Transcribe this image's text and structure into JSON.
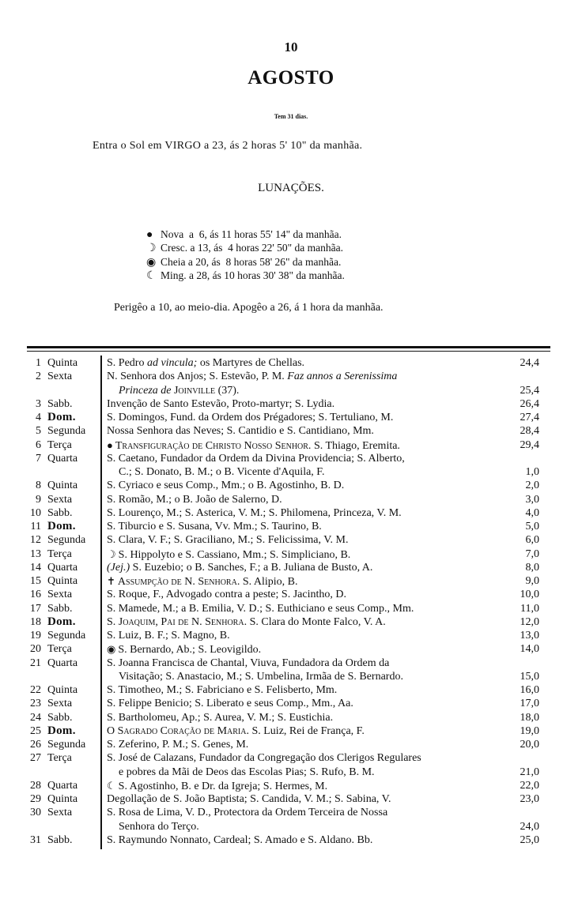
{
  "page_number": "10",
  "month": "AGOSTO",
  "days_count": "Tem 31 dias.",
  "sun_entry": "Entra o Sol em VIRGO a 23, ás 2 horas 5' 10\" da manhãa.",
  "lunations_title": "LUNAÇÕES.",
  "lunations": [
    {
      "icon": "new-moon-icon",
      "text": "Nova  a  6, ás 11 horas 55' 14\" da manhãa."
    },
    {
      "icon": "first-quarter-icon",
      "text": "Cresc. a 13, ás  4 horas 22' 50\" da manhãa."
    },
    {
      "icon": "full-moon-icon",
      "text": "Cheia a 20, ás  8 horas 58' 26\" da manhãa."
    },
    {
      "icon": "last-quarter-icon",
      "text": "Ming. a 28, ás 10 horas 30' 38\" da manhãa."
    }
  ],
  "perigee": "Perigêo a 10, ao meio-dia. Apogêo a 26, á 1 hora da manhãa.",
  "days": [
    {
      "n": "1",
      "wd": "Quinta",
      "lines": [
        [
          {
            "t": "S. Pedro "
          },
          {
            "t": "ad vincula;",
            "s": "i"
          },
          {
            "t": " os Martyres de Chellas."
          }
        ]
      ],
      "v": "24,4"
    },
    {
      "n": "2",
      "wd": "Sexta",
      "lines": [
        [
          {
            "t": "N. Senhora dos Anjos; S. Estevão, P. M. "
          },
          {
            "t": "Faz annos a Serenissima",
            "s": "i"
          }
        ],
        [
          {
            "t": "Princeza de ",
            "s": "i"
          },
          {
            "t": "Joinville",
            "s": "sc"
          },
          {
            "t": " (37)."
          }
        ]
      ],
      "v": "25,4"
    },
    {
      "n": "3",
      "wd": "Sabb.",
      "lines": [
        [
          {
            "t": "Invenção de Santo Estevão, Proto-martyr; S. Lydia."
          }
        ]
      ],
      "v": "26,4"
    },
    {
      "n": "4",
      "wd": "Dom.",
      "dom": true,
      "lines": [
        [
          {
            "t": "S. Domingos, Fund. da Ordem dos Prégadores; S. Tertuliano, M."
          }
        ]
      ],
      "v": "27,4"
    },
    {
      "n": "5",
      "wd": "Segunda",
      "lines": [
        [
          {
            "t": "Nossa Senhora das Neves; S. Cantidio e S. Cantidiano, Mm."
          }
        ]
      ],
      "v": "28,4"
    },
    {
      "n": "6",
      "wd": "Terça",
      "icon": "new-moon-icon",
      "lines": [
        [
          {
            "t": "Transfiguração de Christo Nosso Senhor.",
            "s": "sc"
          },
          {
            "t": " S. Thiago, Eremita."
          }
        ]
      ],
      "v": "29,4"
    },
    {
      "n": "7",
      "wd": "Quarta",
      "lines": [
        [
          {
            "t": "S. Caetano, Fundador da Ordem da Divina Providencia; S. Alberto,"
          }
        ],
        [
          {
            "t": "C.; S. Donato, B. M.; o B. Vicente d'Aquila, F."
          }
        ]
      ],
      "v": "1,0"
    },
    {
      "n": "8",
      "wd": "Quinta",
      "lines": [
        [
          {
            "t": "S. Cyriaco e seus Comp., Mm.; o B. Agostinho, B. D."
          }
        ]
      ],
      "v": "2,0"
    },
    {
      "n": "9",
      "wd": "Sexta",
      "lines": [
        [
          {
            "t": "S. Romão, M.; o B. João de Salerno, D."
          }
        ]
      ],
      "v": "3,0"
    },
    {
      "n": "10",
      "wd": "Sabb.",
      "lines": [
        [
          {
            "t": "S. Lourenço, M.; S. Asterica, V. M.; S. Philomena, Princeza, V. M."
          }
        ]
      ],
      "v": "4,0"
    },
    {
      "n": "11",
      "wd": "Dom.",
      "dom": true,
      "lines": [
        [
          {
            "t": "S. Tiburcio e S. Susana, Vv. Mm.; S. Taurino, B."
          }
        ]
      ],
      "v": "5,0"
    },
    {
      "n": "12",
      "wd": "Segunda",
      "lines": [
        [
          {
            "t": "S. Clara, V. F.; S. Graciliano, M.; S. Felicissima, V. M."
          }
        ]
      ],
      "v": "6,0"
    },
    {
      "n": "13",
      "wd": "Terça",
      "icon": "first-quarter-icon",
      "lines": [
        [
          {
            "t": "S. Hippolyto e S. Cassiano, Mm.; S. Simpliciano, B."
          }
        ]
      ],
      "v": "7,0"
    },
    {
      "n": "14",
      "wd": "Quarta",
      "lines": [
        [
          {
            "t": "(Jej.)",
            "s": "i"
          },
          {
            "t": " S. Euzebio; o B. Sanches, F.; a B. Juliana de Busto, A."
          }
        ]
      ],
      "v": "8,0"
    },
    {
      "n": "15",
      "wd": "Quinta",
      "icon": "cross-icon",
      "lines": [
        [
          {
            "t": "Assumpção de N. Senhora.",
            "s": "sc"
          },
          {
            "t": " S. Alipio, B."
          }
        ]
      ],
      "v": "9,0"
    },
    {
      "n": "16",
      "wd": "Sexta",
      "lines": [
        [
          {
            "t": "S. Roque, F., Advogado contra a peste; S. Jacintho, D."
          }
        ]
      ],
      "v": "10,0"
    },
    {
      "n": "17",
      "wd": "Sabb.",
      "lines": [
        [
          {
            "t": "S. Mamede, M.; a B. Emilia, V. D.; S. Euthiciano e seus Comp., Mm."
          }
        ]
      ],
      "v": "11,0"
    },
    {
      "n": "18",
      "wd": "Dom.",
      "dom": true,
      "lines": [
        [
          {
            "t": "S. Joaquim, Pai de N. Senhora.",
            "s": "sc"
          },
          {
            "t": " S. Clara do Monte Falco, V. A."
          }
        ]
      ],
      "v": "12,0"
    },
    {
      "n": "19",
      "wd": "Segunda",
      "lines": [
        [
          {
            "t": "S. Luiz, B. F.; S. Magno, B."
          }
        ]
      ],
      "v": "13,0"
    },
    {
      "n": "20",
      "wd": "Terça",
      "icon": "full-moon-icon",
      "lines": [
        [
          {
            "t": "S. Bernardo, Ab.; S. Leovigildo."
          }
        ]
      ],
      "v": "14,0"
    },
    {
      "n": "21",
      "wd": "Quarta",
      "lines": [
        [
          {
            "t": "S. Joanna Francisca de Chantal, Viuva, Fundadora da Ordem da"
          }
        ],
        [
          {
            "t": "Visitação; S. Anastacio, M.; S. Umbelina, Irmãa de S. Bernardo."
          }
        ]
      ],
      "v": "15,0"
    },
    {
      "n": "22",
      "wd": "Quinta",
      "lines": [
        [
          {
            "t": "S. Timotheo, M.; S. Fabriciano e S. Felisberto, Mm."
          }
        ]
      ],
      "v": "16,0"
    },
    {
      "n": "23",
      "wd": "Sexta",
      "lines": [
        [
          {
            "t": "S. Felippe Benicio; S. Liberato e seus Comp., Mm., Aa."
          }
        ]
      ],
      "v": "17,0"
    },
    {
      "n": "24",
      "wd": "Sabb.",
      "lines": [
        [
          {
            "t": "S. Bartholomeu, Ap.; S. Aurea, V. M.; S. Eustichia."
          }
        ]
      ],
      "v": "18,0"
    },
    {
      "n": "25",
      "wd": "Dom.",
      "dom": true,
      "lines": [
        [
          {
            "t": "O Sagrado Coração de Maria.",
            "s": "sc"
          },
          {
            "t": " S. Luiz, Rei de França, F."
          }
        ]
      ],
      "v": "19,0"
    },
    {
      "n": "26",
      "wd": "Segunda",
      "lines": [
        [
          {
            "t": "S. Zeferino, P. M.; S. Genes, M."
          }
        ]
      ],
      "v": "20,0"
    },
    {
      "n": "27",
      "wd": "Terça",
      "lines": [
        [
          {
            "t": "S. José de Calazans, Fundador da Congregação dos Clerigos Regulares"
          }
        ],
        [
          {
            "t": "e pobres da Mãi de Deos das Escolas Pias; S. Rufo, B. M."
          }
        ]
      ],
      "v": "21,0"
    },
    {
      "n": "28",
      "wd": "Quarta",
      "icon": "last-quarter-icon",
      "lines": [
        [
          {
            "t": "S. Agostinho, B. e Dr. da Igreja; S. Hermes, M."
          }
        ]
      ],
      "v": "22,0"
    },
    {
      "n": "29",
      "wd": "Quinta",
      "lines": [
        [
          {
            "t": "Degollação de S. João Baptista; S. Candida, V. M.; S. Sabina, V."
          }
        ]
      ],
      "v": "23,0"
    },
    {
      "n": "30",
      "wd": "Sexta",
      "lines": [
        [
          {
            "t": "S. Rosa de Lima, V. D., Protectora da Ordem Terceira de Nossa"
          }
        ],
        [
          {
            "t": "Senhora do Terço."
          }
        ]
      ],
      "v": "24,0"
    },
    {
      "n": "31",
      "wd": "Sabb.",
      "lines": [
        [
          {
            "t": "S. Raymundo Nonnato, Cardeal; S. Amado e S. Aldano. Bb."
          }
        ]
      ],
      "v": "25,0"
    }
  ]
}
